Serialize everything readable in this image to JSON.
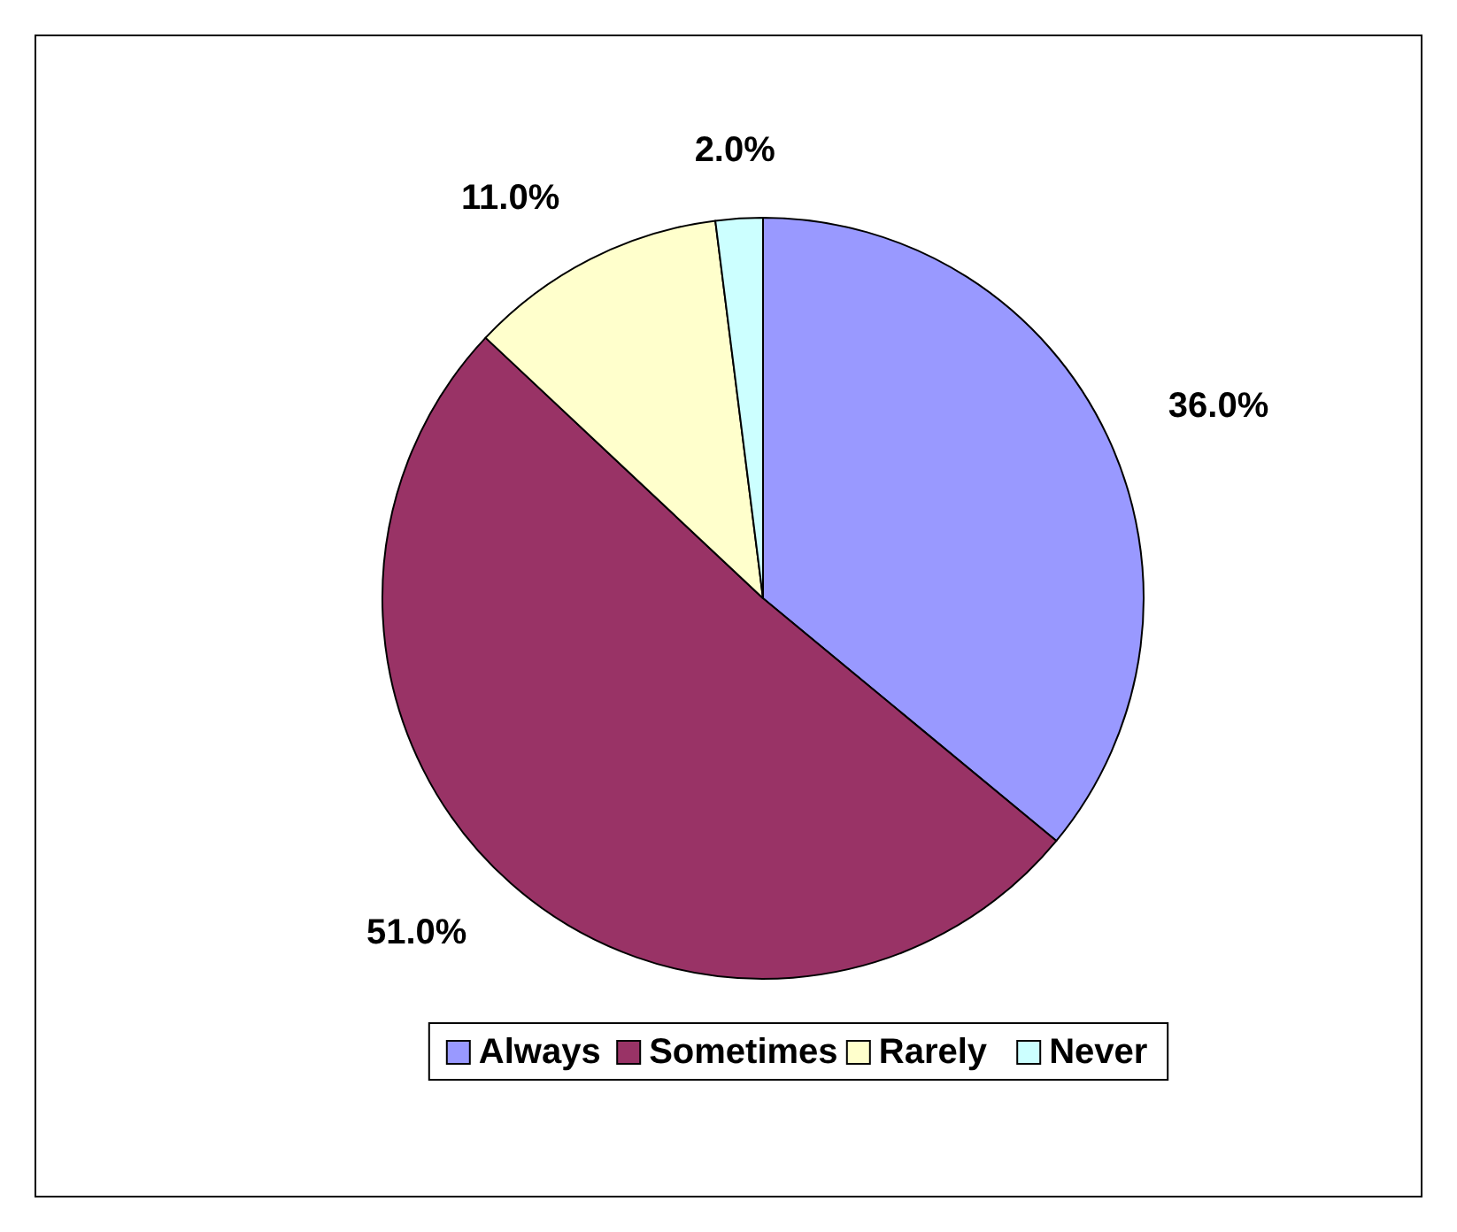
{
  "chart_data": {
    "type": "pie",
    "categories": [
      "Always",
      "Sometimes",
      "Rarely",
      "Never"
    ],
    "values": [
      36,
      51,
      11,
      2
    ],
    "colors": [
      "#9999ff",
      "#993366",
      "#ffffcc",
      "#ccffff"
    ],
    "value_labels": [
      "36.0%",
      "51.0%",
      "11.0%",
      "2.0%"
    ],
    "legend": "bottom"
  }
}
